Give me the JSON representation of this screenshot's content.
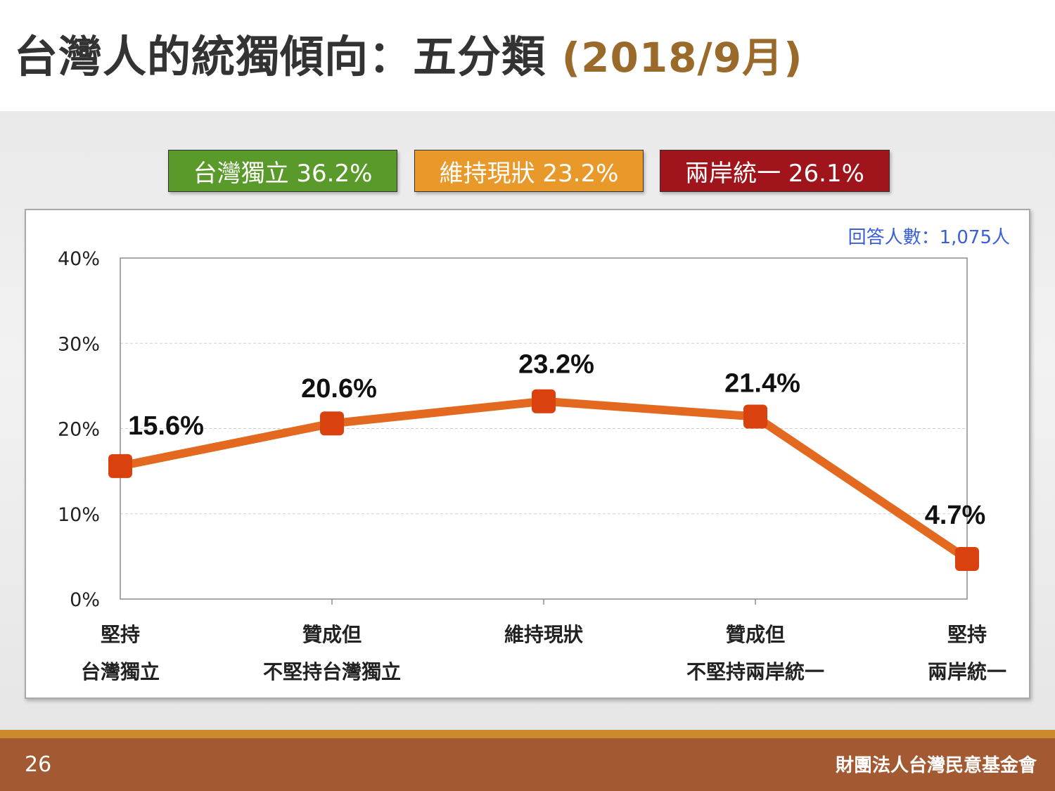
{
  "title": {
    "main": "台灣人的統獨傾向：五分類",
    "date": "(2018/9月)"
  },
  "summary_badges": [
    {
      "label": "台灣獨立 36.2%",
      "color": "#5a9a2a"
    },
    {
      "label": "維持現狀 23.2%",
      "color": "#e9992a"
    },
    {
      "label": "兩岸統一 26.1%",
      "color": "#a0151c"
    }
  ],
  "respondents_label": "回答人數：1,075人",
  "chart_data": {
    "type": "line",
    "categories": [
      [
        "堅持",
        "台灣獨立"
      ],
      [
        "贊成但",
        "不堅持台灣獨立"
      ],
      [
        "維持現狀"
      ],
      [
        "贊成但",
        "不堅持兩岸統一"
      ],
      [
        "堅持",
        "兩岸統一"
      ]
    ],
    "series": [
      {
        "values": [
          15.6,
          20.6,
          23.2,
          21.4,
          4.7
        ],
        "color": "#e2691f",
        "marker_color": "#d9420f"
      }
    ],
    "data_labels": [
      "15.6%",
      "20.6%",
      "23.2%",
      "21.4%",
      "4.7%"
    ],
    "ylim": [
      0,
      40
    ],
    "yticks": [
      "0%",
      "10%",
      "20%",
      "30%",
      "40%"
    ],
    "ytick_values": [
      0,
      10,
      20,
      30,
      40
    ],
    "grid": true,
    "title": "",
    "xlabel": "",
    "ylabel": ""
  },
  "footer": {
    "page_number": "26",
    "organization": "財團法人台灣民意基金會"
  }
}
